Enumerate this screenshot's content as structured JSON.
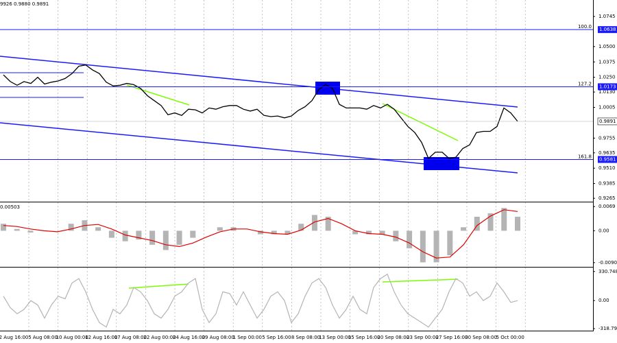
{
  "chart_data": [
    {
      "type": "line",
      "header": "9926 0.9880 0.9891",
      "series": [
        {
          "color": "#000000",
          "values": [
            1.027,
            1.0215,
            1.0185,
            1.0215,
            1.02,
            1.025,
            1.0195,
            1.021,
            1.022,
            1.024,
            1.028,
            1.034,
            1.035,
            1.031,
            1.028,
            1.021,
            1.018,
            1.0185,
            1.02,
            1.019,
            1.016,
            1.01,
            1.006,
            1.002,
            0.9945,
            0.996,
            0.994,
            0.999,
            0.9985,
            0.996,
            1.0,
            0.999,
            1.001,
            1.002,
            1.002,
            0.999,
            0.9975,
            0.999,
            0.994,
            0.993,
            0.9935,
            0.992,
            0.9935,
            0.998,
            1.001,
            1.006,
            1.015,
            1.019,
            1.016,
            1.003,
            1.0,
            1.0,
            1.0,
            0.999,
            1.002,
            1.0,
            1.003,
            0.999,
            0.992,
            0.985,
            0.98,
            0.972,
            0.959,
            0.964,
            0.964,
            0.959,
            0.96,
            0.967,
            0.97,
            0.98,
            0.981,
            0.981,
            0.985,
            1.0,
            0.996,
            0.9891
          ]
        }
      ],
      "ylim": [
        0.9243,
        1.0879
      ],
      "yticks": [
        1.0745,
        {
          "value": 1.05,
          "label": "1.0500"
        },
        1.0375,
        {
          "value": 1.025,
          "label": "1.0250"
        },
        {
          "value": 1.013,
          "label": "1.0130"
        },
        1.0005,
        0.9755,
        0.9635,
        {
          "value": 0.951,
          "label": "0.9510"
        },
        0.9385,
        0.9265
      ],
      "levels": [
        {
          "label": "100.0",
          "value": 1.0638,
          "color": "#1a1aff"
        },
        {
          "label": "127.2",
          "value": 1.0173,
          "color": "#1a1aff"
        },
        {
          "label": "161.8",
          "value": 0.9581,
          "color": "#1a1aff"
        }
      ],
      "last_price": 0.9891,
      "x_labels": [
        "2 Aug 16:00",
        "5 Aug 08:00",
        "10 Aug 00:00",
        "12 Aug 16:00",
        "17 Aug 08:00",
        "22 Aug 00:00",
        "24 Aug 16:00",
        "29 Aug 08:00",
        "1 Sep 00:00",
        "5 Sep 16:00",
        "8 Sep 08:00",
        "13 Sep 00:00",
        "15 Sep 16:00",
        "20 Sep 08:00",
        "23 Sep 00:00",
        "27 Sep 16:00",
        "30 Sep 08:00",
        "5 Oct 00:00"
      ]
    },
    {
      "type": "macd",
      "header": "0.00503",
      "series": [
        {
          "color": "#b4b4b4",
          "values": [
            0.002,
            0.0005,
            -0.0005,
            0,
            0,
            0.002,
            0.003,
            0.001,
            -0.002,
            -0.003,
            -0.0025,
            -0.004,
            -0.0055,
            -0.004,
            -0.002,
            0,
            0.001,
            0.001,
            0,
            -0.001,
            -0.001,
            -0.001,
            0.002,
            0.0045,
            0.004,
            0,
            -0.001,
            -0.001,
            -0.001,
            -0.003,
            -0.005,
            -0.009,
            -0.009,
            -0.007,
            0.001,
            0.004,
            0.005,
            0.0065,
            0.004
          ]
        },
        {
          "color": "#e00000",
          "values": [
            0.0015,
            0.0012,
            0.0005,
            0,
            -0.0003,
            0.0005,
            0.0015,
            0.0018,
            0.0005,
            -0.0012,
            -0.002,
            -0.0028,
            -0.004,
            -0.0045,
            -0.0035,
            -0.0018,
            -0.0003,
            0.0005,
            0.0005,
            -0.0003,
            -0.0008,
            -0.001,
            0.0002,
            0.0025,
            0.0035,
            0.002,
            0,
            -0.0008,
            -0.001,
            -0.0018,
            -0.0035,
            -0.006,
            -0.0078,
            -0.0075,
            -0.004,
            0.0015,
            0.0042,
            0.006,
            0.0055
          ]
        }
      ],
      "ylim": [
        -0.0101,
        0.0079
      ],
      "yticks": [
        0.0069,
        {
          "value": 0,
          "label": "0.00"
        },
        -0.00909
      ]
    },
    {
      "type": "line",
      "series": [
        {
          "color": "#b4b4b4",
          "values": [
            50,
            -80,
            -150,
            -100,
            0,
            -50,
            -200,
            -50,
            50,
            20,
            200,
            250,
            100,
            -100,
            -250,
            -300,
            -100,
            -150,
            -50,
            150,
            100,
            0,
            -150,
            -200,
            -100,
            50,
            100,
            200,
            250,
            -100,
            -250,
            -150,
            100,
            80,
            -50,
            100,
            -50,
            -200,
            -100,
            50,
            100,
            0,
            -250,
            -150,
            50,
            200,
            250,
            150,
            -50,
            -200,
            -100,
            50,
            -100,
            -150,
            150,
            250,
            300,
            100,
            -50,
            -150,
            -200,
            -250,
            -300,
            -200,
            -100,
            100,
            250,
            200,
            50,
            100,
            0,
            50,
            200,
            100,
            -20,
            0
          ]
        }
      ],
      "ylim": [
        -326,
        368
      ],
      "yticks": [
        330.7482,
        {
          "value": 0,
          "label": "0.00"
        },
        -318.798
      ]
    }
  ]
}
